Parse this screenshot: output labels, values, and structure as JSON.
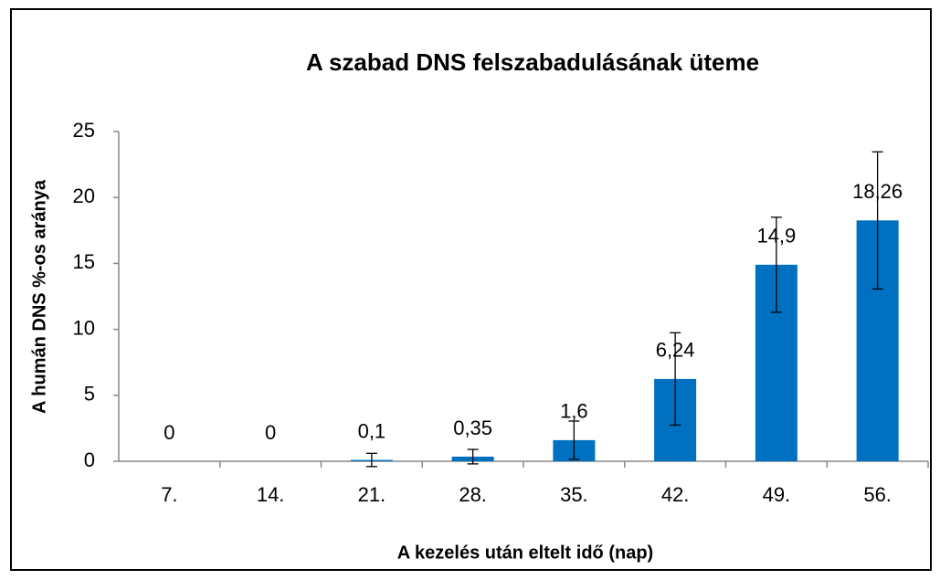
{
  "chart_data": {
    "type": "bar",
    "title": "A szabad DNS felszabadulásának üteme",
    "x_label": "A kezelés után eltelt idő (nap)",
    "y_label": "A humán DNS %-os aránya",
    "categories": [
      "7.",
      "14.",
      "21.",
      "28.",
      "35.",
      "42.",
      "49.",
      "56."
    ],
    "values": [
      0,
      0,
      0.1,
      0.35,
      1.6,
      6.24,
      14.9,
      18.26
    ],
    "value_labels": [
      "0",
      "0",
      "0,1",
      "0,35",
      "1,6",
      "6,24",
      "14,9",
      "18,26"
    ],
    "errors": [
      null,
      null,
      0.5,
      0.55,
      1.45,
      3.5,
      3.6,
      5.2
    ],
    "color": "#0070c0",
    "ylim": [
      0,
      25
    ],
    "yticks": [
      0,
      5,
      10,
      15,
      20,
      25
    ],
    "grid": false
  }
}
